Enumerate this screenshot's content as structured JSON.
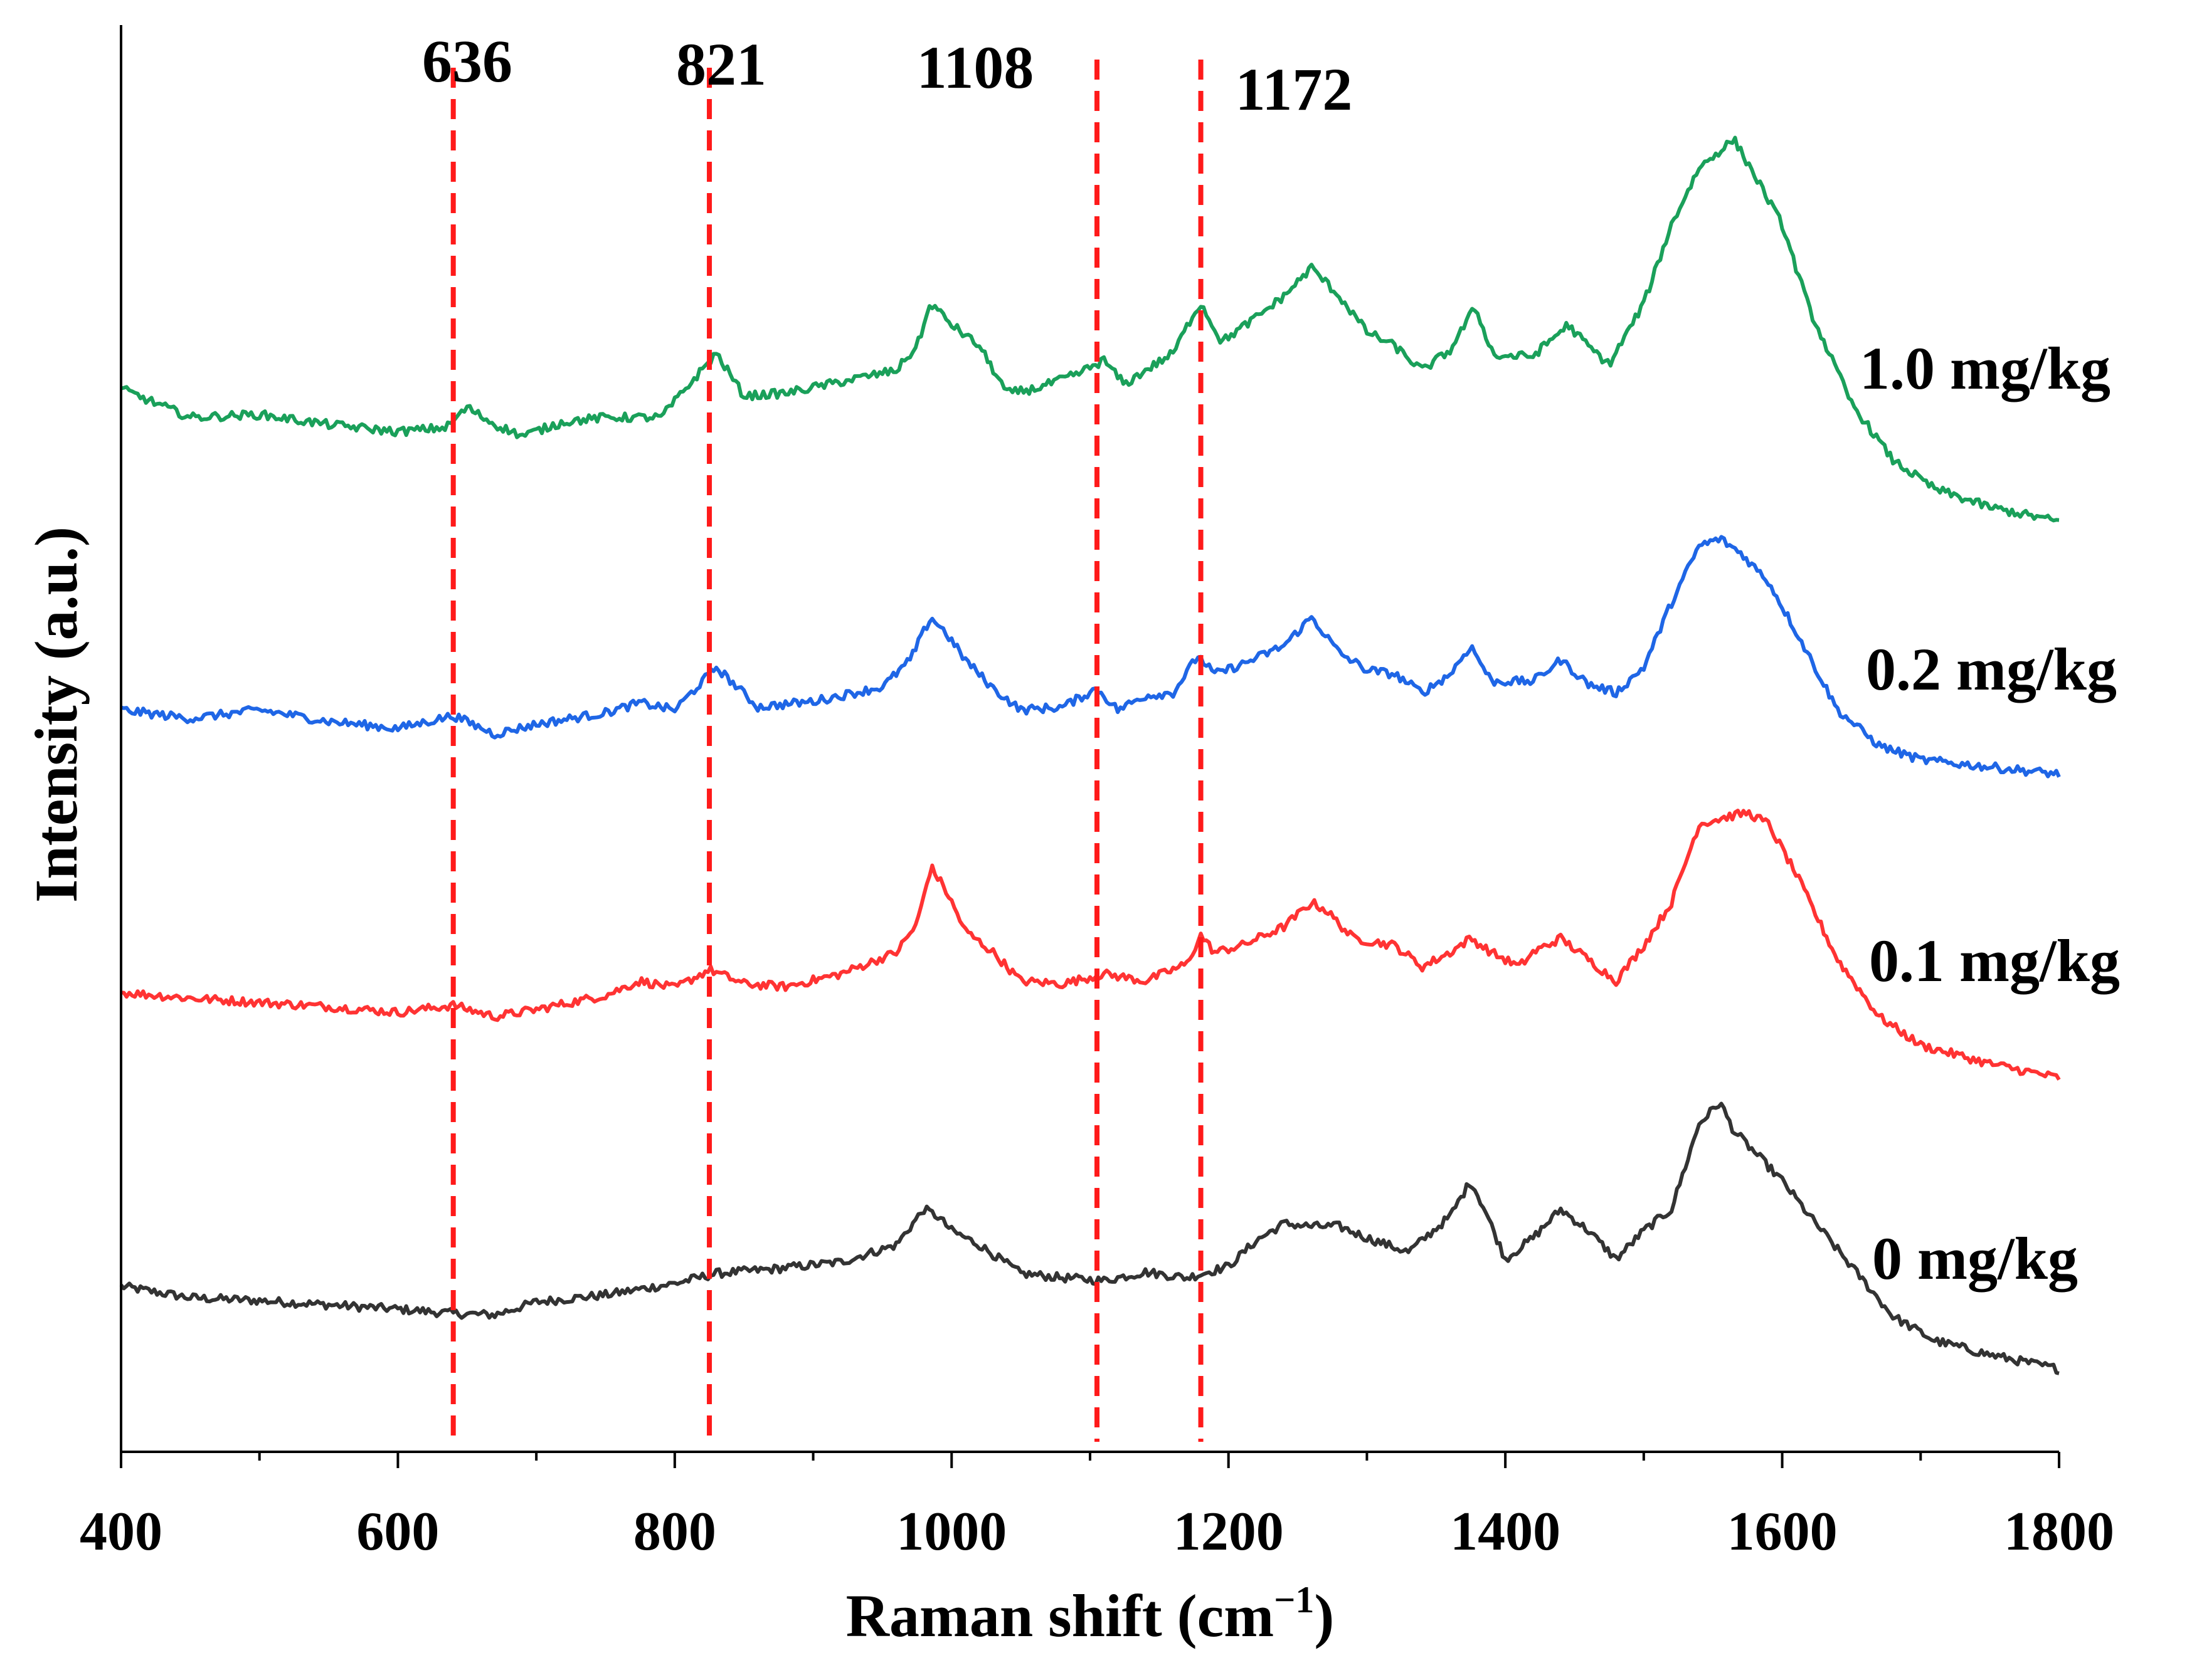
{
  "chart_data": {
    "type": "line",
    "title": "",
    "xlabel": "Raman shift (cm",
    "xlabel_sup": "−1",
    "xlabel_close": ")",
    "ylabel": "Intensity (a.u.)",
    "xlim": [
      400,
      1800
    ],
    "ylim": [
      0,
      10
    ],
    "xticks": [
      "400",
      "600",
      "800",
      "1000",
      "1200",
      "1400",
      "1600",
      "1800"
    ],
    "xtick_values": [
      400,
      600,
      800,
      1000,
      1200,
      1400,
      1600,
      1800
    ],
    "grid": false,
    "legend": "inline-right",
    "annotations": [
      {
        "label": "636",
        "x": 640
      },
      {
        "label": "821",
        "x": 825
      },
      {
        "label": "1108",
        "x": 1105
      },
      {
        "label": "1172",
        "x": 1180
      }
    ],
    "series": [
      {
        "name": "0 mg/kg",
        "color": "#333333",
        "x": [
          400,
          450,
          500,
          550,
          600,
          640,
          670,
          700,
          750,
          800,
          830,
          870,
          920,
          960,
          980,
          990,
          1000,
          1020,
          1050,
          1080,
          1110,
          1140,
          1170,
          1200,
          1220,
          1240,
          1260,
          1280,
          1300,
          1330,
          1360,
          1375,
          1385,
          1400,
          1420,
          1440,
          1460,
          1480,
          1500,
          1520,
          1540,
          1555,
          1565,
          1580,
          1600,
          1620,
          1650,
          1680,
          1710,
          1750,
          1800
        ],
        "values": [
          1.16,
          1.08,
          1.06,
          1.03,
          1.0,
          0.97,
          0.96,
          1.05,
          1.1,
          1.18,
          1.25,
          1.28,
          1.33,
          1.45,
          1.7,
          1.65,
          1.55,
          1.45,
          1.25,
          1.22,
          1.2,
          1.26,
          1.22,
          1.3,
          1.48,
          1.6,
          1.58,
          1.58,
          1.5,
          1.4,
          1.65,
          1.9,
          1.7,
          1.35,
          1.5,
          1.7,
          1.55,
          1.35,
          1.55,
          1.7,
          2.3,
          2.45,
          2.25,
          2.1,
          1.9,
          1.65,
          1.3,
          0.95,
          0.78,
          0.68,
          0.58
        ]
      },
      {
        "name": "0.1 mg/kg",
        "color": "#ff3333",
        "x": [
          400,
          450,
          500,
          550,
          600,
          640,
          670,
          700,
          750,
          775,
          800,
          825,
          850,
          880,
          920,
          960,
          975,
          985,
          995,
          1010,
          1030,
          1050,
          1080,
          1110,
          1140,
          1170,
          1180,
          1190,
          1210,
          1240,
          1260,
          1270,
          1290,
          1320,
          1340,
          1360,
          1375,
          1390,
          1410,
          1420,
          1440,
          1460,
          1480,
          1500,
          1520,
          1540,
          1560,
          1575,
          1590,
          1610,
          1640,
          1670,
          1700,
          1750,
          1800
        ],
        "values": [
          3.22,
          3.18,
          3.15,
          3.12,
          3.08,
          3.13,
          3.05,
          3.1,
          3.2,
          3.3,
          3.25,
          3.38,
          3.28,
          3.26,
          3.35,
          3.5,
          3.7,
          4.1,
          3.95,
          3.65,
          3.5,
          3.3,
          3.28,
          3.35,
          3.3,
          3.42,
          3.62,
          3.5,
          3.55,
          3.68,
          3.85,
          3.8,
          3.6,
          3.55,
          3.4,
          3.5,
          3.6,
          3.5,
          3.4,
          3.5,
          3.6,
          3.45,
          3.3,
          3.55,
          3.85,
          4.4,
          4.45,
          4.48,
          4.4,
          4.05,
          3.45,
          3.05,
          2.85,
          2.72,
          2.62
        ]
      },
      {
        "name": "0.2 mg/kg",
        "color": "#1f66e6",
        "x": [
          400,
          450,
          500,
          550,
          600,
          640,
          670,
          700,
          750,
          775,
          800,
          830,
          860,
          900,
          950,
          970,
          985,
          995,
          1010,
          1030,
          1050,
          1080,
          1105,
          1120,
          1140,
          1160,
          1178,
          1190,
          1210,
          1240,
          1260,
          1280,
          1300,
          1320,
          1340,
          1360,
          1375,
          1390,
          1420,
          1440,
          1460,
          1480,
          1500,
          1520,
          1540,
          1555,
          1570,
          1590,
          1610,
          1640,
          1670,
          1700,
          1750,
          1800
        ],
        "values": [
          5.2,
          5.14,
          5.2,
          5.12,
          5.07,
          5.16,
          5.03,
          5.1,
          5.18,
          5.25,
          5.2,
          5.5,
          5.22,
          5.26,
          5.36,
          5.55,
          5.85,
          5.75,
          5.55,
          5.35,
          5.2,
          5.22,
          5.35,
          5.2,
          5.3,
          5.32,
          5.58,
          5.45,
          5.52,
          5.65,
          5.85,
          5.6,
          5.48,
          5.45,
          5.32,
          5.45,
          5.65,
          5.4,
          5.4,
          5.55,
          5.38,
          5.32,
          5.5,
          5.95,
          6.35,
          6.4,
          6.3,
          6.1,
          5.75,
          5.2,
          4.95,
          4.85,
          4.8,
          4.75
        ]
      },
      {
        "name": "1.0 mg/kg",
        "color": "#1aa05a",
        "x": [
          400,
          450,
          500,
          550,
          600,
          635,
          650,
          670,
          690,
          720,
          750,
          790,
          830,
          850,
          880,
          920,
          960,
          975,
          985,
          1000,
          1020,
          1040,
          1060,
          1090,
          1110,
          1125,
          1140,
          1160,
          1175,
          1180,
          1195,
          1220,
          1240,
          1260,
          1280,
          1300,
          1320,
          1340,
          1360,
          1378,
          1392,
          1420,
          1445,
          1460,
          1475,
          1500,
          1520,
          1540,
          1565,
          1580,
          1600,
          1620,
          1650,
          1680,
          1710,
          1750,
          1800
        ],
        "values": [
          7.45,
          7.25,
          7.27,
          7.2,
          7.15,
          7.18,
          7.32,
          7.2,
          7.12,
          7.22,
          7.25,
          7.25,
          7.7,
          7.4,
          7.42,
          7.5,
          7.58,
          7.75,
          8.05,
          7.9,
          7.75,
          7.42,
          7.45,
          7.55,
          7.65,
          7.48,
          7.58,
          7.7,
          7.98,
          8.05,
          7.78,
          7.95,
          8.1,
          8.3,
          8.1,
          7.85,
          7.75,
          7.58,
          7.72,
          8.02,
          7.68,
          7.68,
          7.9,
          7.75,
          7.62,
          8.05,
          8.6,
          9.0,
          9.2,
          8.95,
          8.6,
          8.0,
          7.35,
          6.95,
          6.75,
          6.62,
          6.52
        ]
      }
    ]
  }
}
